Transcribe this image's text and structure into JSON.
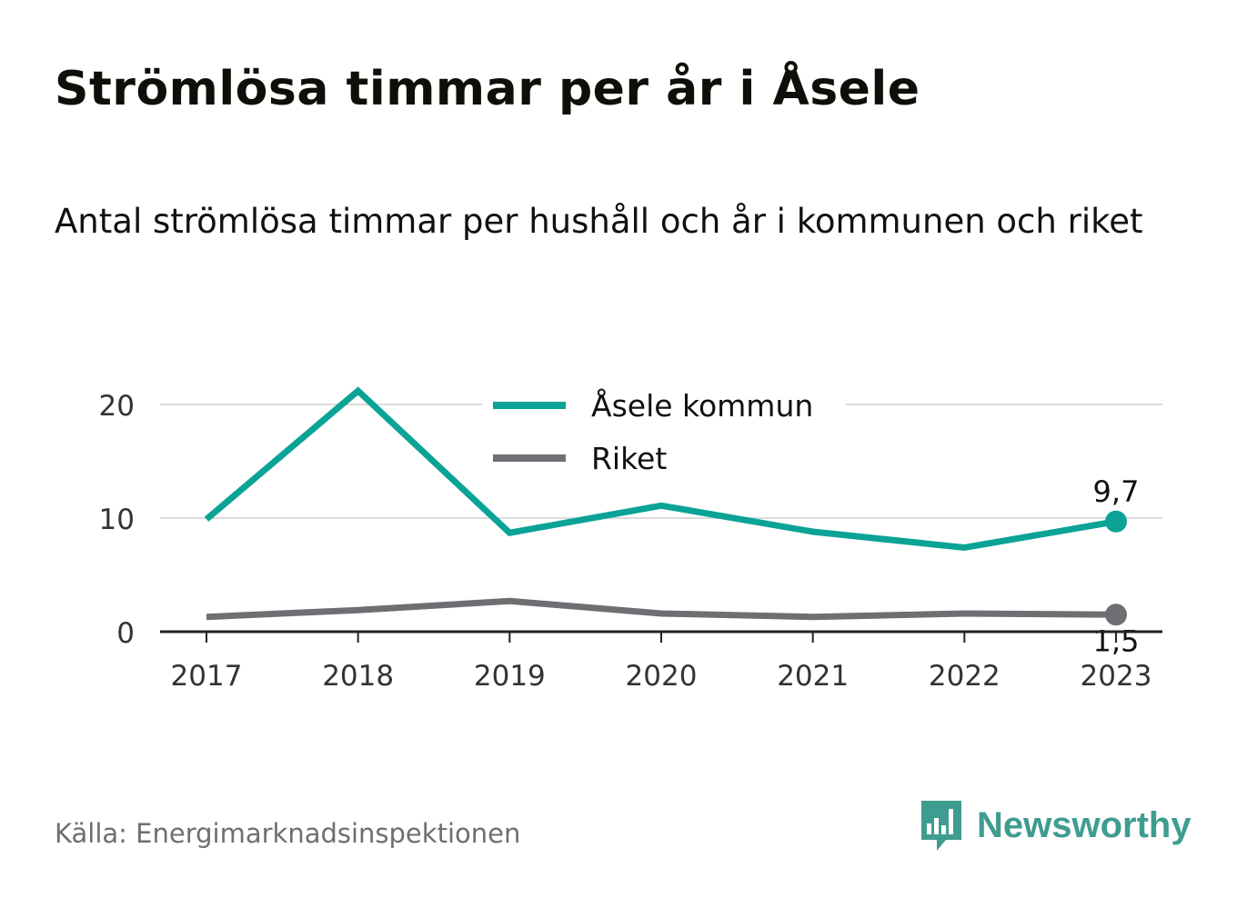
{
  "header": {
    "title": "Strömlösa timmar per år i Åsele",
    "subtitle": "Antal strömlösa timmar per hushåll och år i kommunen och riket"
  },
  "chart_data": {
    "type": "line",
    "x": [
      "2017",
      "2018",
      "2019",
      "2020",
      "2021",
      "2022",
      "2023"
    ],
    "series": [
      {
        "name": "Åsele kommun",
        "color": "#0aa396",
        "values": [
          9.9,
          21.2,
          8.7,
          11.1,
          8.8,
          7.4,
          9.7
        ],
        "end_label": "9,7"
      },
      {
        "name": "Riket",
        "color": "#6e6e73",
        "values": [
          1.3,
          1.9,
          2.7,
          1.6,
          1.3,
          1.6,
          1.5
        ],
        "end_label": "1,5"
      }
    ],
    "yticks": [
      {
        "value": 0,
        "label": "0"
      },
      {
        "value": 10,
        "label": "10"
      },
      {
        "value": 20,
        "label": "20"
      }
    ],
    "ylim": [
      0,
      22
    ],
    "grid": true,
    "legend_position": "top-center"
  },
  "footer": {
    "source": "Källa: Energimarknadsinspektionen",
    "brand": "Newsworthy",
    "brand_color": "#3f9c90",
    "brand_icon": "bar-chart-speech-bubble-icon"
  }
}
